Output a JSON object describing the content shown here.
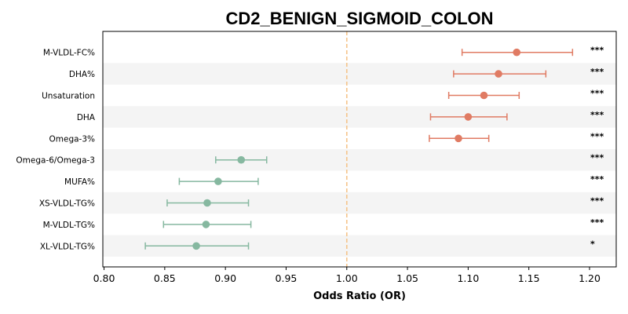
{
  "chart_data": {
    "type": "forest",
    "title": "CD2_BENIGN_SIGMOID_COLON",
    "xlabel": "Odds Ratio (OR)",
    "xlim": [
      0.799,
      1.222
    ],
    "xticks": [
      "0.80",
      "0.85",
      "0.90",
      "0.95",
      "1.00",
      "1.05",
      "1.10",
      "1.15",
      "1.20"
    ],
    "reference_line": 1.0,
    "colors": {
      "positive": "#E07B63",
      "negative": "#86B8A0",
      "reference": "#F5C48A",
      "stripe": "#F4F4F4"
    },
    "rows": [
      {
        "label": "M-VLDL-FC%",
        "or": 1.14,
        "lo": 1.095,
        "hi": 1.186,
        "sig": "***"
      },
      {
        "label": "DHA%",
        "or": 1.125,
        "lo": 1.088,
        "hi": 1.164,
        "sig": "***"
      },
      {
        "label": "Unsaturation",
        "or": 1.113,
        "lo": 1.084,
        "hi": 1.142,
        "sig": "***"
      },
      {
        "label": "DHA",
        "or": 1.1,
        "lo": 1.069,
        "hi": 1.132,
        "sig": "***"
      },
      {
        "label": "Omega-3%",
        "or": 1.092,
        "lo": 1.068,
        "hi": 1.117,
        "sig": "***"
      },
      {
        "label": "Omega-6/Omega-3",
        "or": 0.913,
        "lo": 0.892,
        "hi": 0.934,
        "sig": "***"
      },
      {
        "label": "MUFA%",
        "or": 0.894,
        "lo": 0.862,
        "hi": 0.927,
        "sig": "***"
      },
      {
        "label": "XS-VLDL-TG%",
        "or": 0.885,
        "lo": 0.852,
        "hi": 0.919,
        "sig": "***"
      },
      {
        "label": "M-VLDL-TG%",
        "or": 0.884,
        "lo": 0.849,
        "hi": 0.921,
        "sig": "***"
      },
      {
        "label": "XL-VLDL-TG%",
        "or": 0.876,
        "lo": 0.834,
        "hi": 0.919,
        "sig": "*"
      }
    ]
  }
}
